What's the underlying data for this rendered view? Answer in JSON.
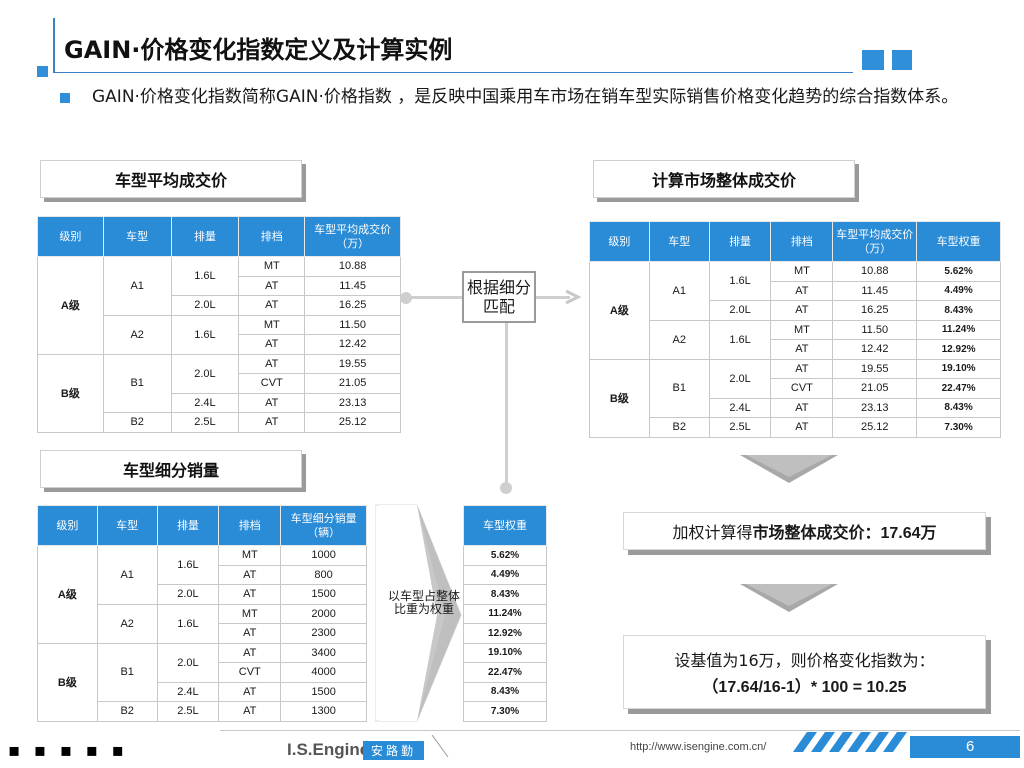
{
  "title": "GAIN·价格变化指数定义及计算实例",
  "intro": "GAIN·价格变化指数简称GAIN·价格指数 ，是反映中国乘用车市场在销车型实际销售价格变化趋势的综合指数体系。",
  "labels": {
    "avg_price": "车型平均成交价",
    "market_price": "计算市场整体成交价",
    "segment_sales": "车型细分销量",
    "match": "根据细分匹配",
    "weight_note": "以车型占整体比重为权重"
  },
  "tables": {
    "avg_price": {
      "headers": [
        "级别",
        "车型",
        "排量",
        "排档",
        "车型平均成交价（万）"
      ]
    },
    "market": {
      "headers": [
        "级别",
        "车型",
        "排量",
        "排档",
        "车型平均成交价（万）",
        "车型权重"
      ]
    },
    "sales": {
      "headers": [
        "级别",
        "车型",
        "排量",
        "排档",
        "车型细分销量（辆）"
      ],
      "weight_header": "车型权重"
    },
    "levels": {
      "a": "A级",
      "b": "B级"
    },
    "models": {
      "a1": "A1",
      "a2": "A2",
      "b1": "B1",
      "b2": "B2"
    },
    "rows": [
      {
        "disp": "1.6L",
        "gear": "MT",
        "price": "10.88",
        "weight": "5.62%",
        "sales": "1000"
      },
      {
        "disp": "1.6L",
        "gear": "AT",
        "price": "11.45",
        "weight": "4.49%",
        "sales": "800"
      },
      {
        "disp": "2.0L",
        "gear": "AT",
        "price": "16.25",
        "weight": "8.43%",
        "sales": "1500"
      },
      {
        "disp": "1.6L",
        "gear": "MT",
        "price": "11.50",
        "weight": "11.24%",
        "sales": "2000"
      },
      {
        "disp": "1.6L",
        "gear": "AT",
        "price": "12.42",
        "weight": "12.92%",
        "sales": "2300"
      },
      {
        "disp": "2.0L",
        "gear": "AT",
        "price": "19.55",
        "weight": "19.10%",
        "sales": "3400"
      },
      {
        "disp": "2.0L",
        "gear": "CVT",
        "price": "21.05",
        "weight": "22.47%",
        "sales": "4000"
      },
      {
        "disp": "2.4L",
        "gear": "AT",
        "price": "23.13",
        "weight": "8.43%",
        "sales": "1500"
      },
      {
        "disp": "2.5L",
        "gear": "AT",
        "price": "25.12",
        "weight": "7.30%",
        "sales": "1300"
      }
    ]
  },
  "result": {
    "prefix": "加权计算得",
    "bold": "市场整体成交价：",
    "value": "17.64万"
  },
  "index": {
    "line1": "设基值为16万，则价格变化指数为：",
    "line2": "（17.64/16-1）* 100 = 10.25"
  },
  "footer": {
    "dots": "▪ ▪ ▪ ▪ ▪",
    "brand": "I.S.Engine",
    "brand_cn": "安路勤",
    "url": "http://www.isengine.com.cn/",
    "page": "6"
  }
}
